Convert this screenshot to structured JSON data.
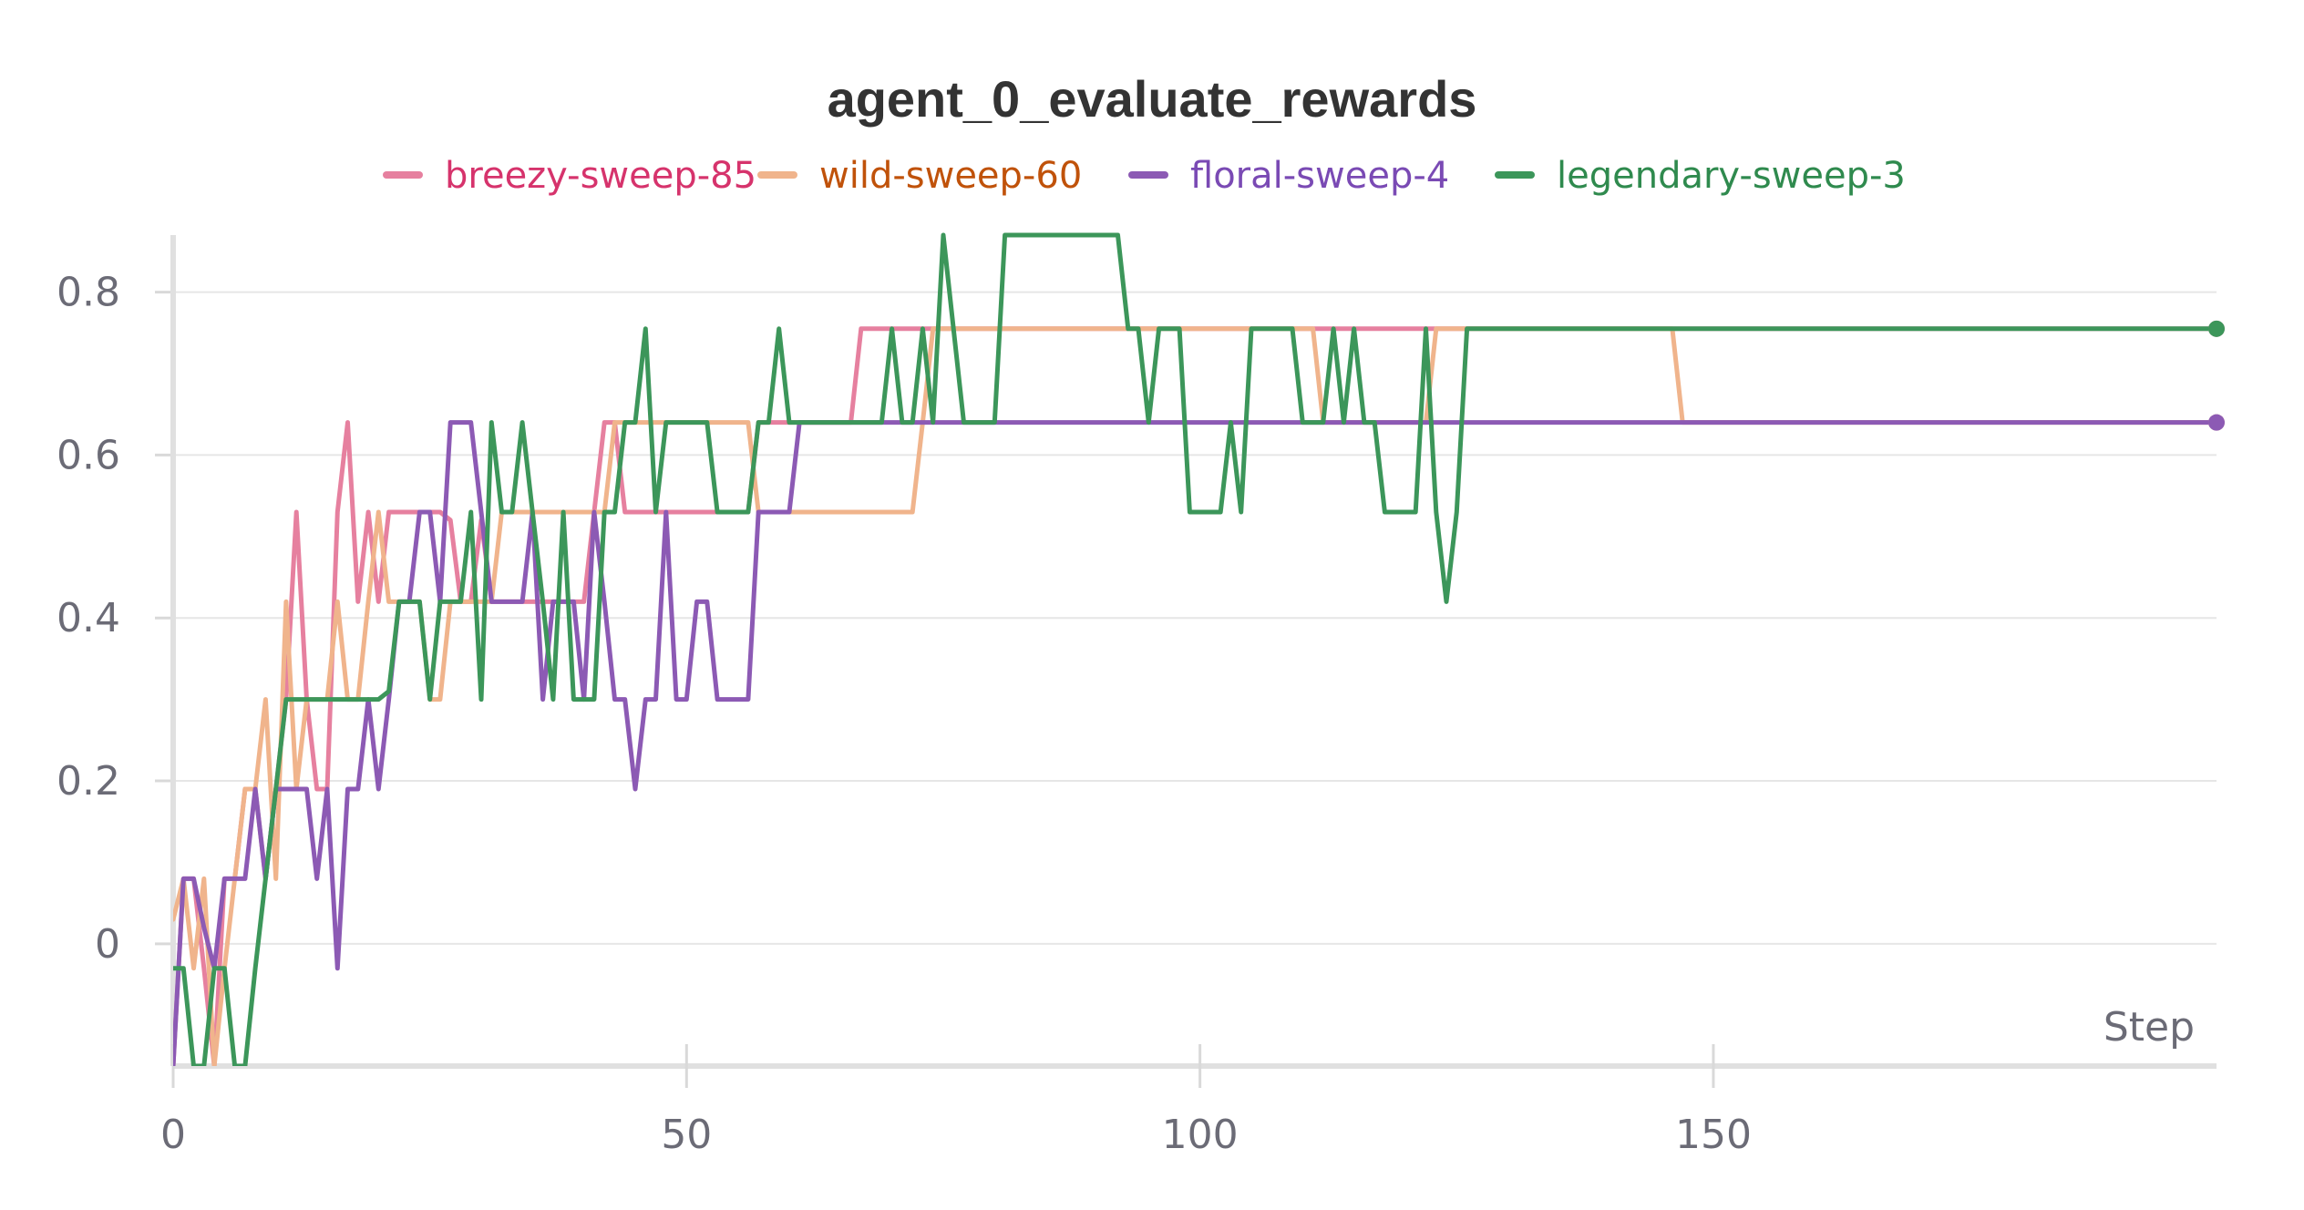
{
  "chart_data": {
    "type": "line",
    "title": "agent_0_evaluate_rewards",
    "xlabel": "Step",
    "ylabel": "",
    "xlim": [
      0,
      199
    ],
    "ylim": [
      -0.15,
      0.87
    ],
    "x_ticks": [
      0,
      50,
      100,
      150
    ],
    "y_ticks": [
      0,
      0.2,
      0.4,
      0.6,
      0.8
    ],
    "x_tick_labels": [
      "0",
      "50",
      "100",
      "150"
    ],
    "y_tick_labels": [
      "0",
      "0.2",
      "0.4",
      "0.6",
      "0.8"
    ],
    "grid": true,
    "legend_position": "top",
    "series": [
      {
        "name": "breezy-sweep-85",
        "color": "#e6809f",
        "label_color": "#d6336c",
        "points": [
          [
            0,
            -0.15
          ],
          [
            1,
            0.08
          ],
          [
            2,
            0.08
          ],
          [
            3,
            -0.03
          ],
          [
            4,
            -0.15
          ],
          [
            5,
            0.08
          ],
          [
            6,
            0.08
          ],
          [
            7,
            0.19
          ],
          [
            8,
            0.19
          ],
          [
            9,
            0.08
          ],
          [
            10,
            0.19
          ],
          [
            11,
            0.3
          ],
          [
            12,
            0.53
          ],
          [
            13,
            0.3
          ],
          [
            14,
            0.19
          ],
          [
            15,
            0.19
          ],
          [
            16,
            0.53
          ],
          [
            17,
            0.64
          ],
          [
            18,
            0.42
          ],
          [
            19,
            0.53
          ],
          [
            20,
            0.42
          ],
          [
            21,
            0.53
          ],
          [
            26,
            0.53
          ],
          [
            27,
            0.52
          ],
          [
            28,
            0.42
          ],
          [
            29,
            0.42
          ],
          [
            30,
            0.52
          ],
          [
            31,
            0.42
          ],
          [
            32,
            0.42
          ],
          [
            33,
            0.42
          ],
          [
            34,
            0.42
          ],
          [
            35,
            0.42
          ],
          [
            36,
            0.42
          ],
          [
            37,
            0.42
          ],
          [
            38,
            0.42
          ],
          [
            39,
            0.42
          ],
          [
            40,
            0.42
          ],
          [
            41,
            0.53
          ],
          [
            42,
            0.64
          ],
          [
            43,
            0.64
          ],
          [
            44,
            0.53
          ],
          [
            55,
            0.53
          ],
          [
            56,
            0.53
          ],
          [
            57,
            0.64
          ],
          [
            66,
            0.64
          ],
          [
            67,
            0.755
          ],
          [
            130,
            0.755
          ],
          [
            199,
            0.755
          ]
        ]
      },
      {
        "name": "wild-sweep-60",
        "color": "#f0b48c",
        "label_color": "#c0520a",
        "points": [
          [
            0,
            0.03
          ],
          [
            1,
            0.08
          ],
          [
            2,
            -0.03
          ],
          [
            3,
            0.08
          ],
          [
            4,
            -0.15
          ],
          [
            5,
            -0.03
          ],
          [
            6,
            0.08
          ],
          [
            7,
            0.19
          ],
          [
            8,
            0.19
          ],
          [
            9,
            0.3
          ],
          [
            10,
            0.08
          ],
          [
            11,
            0.42
          ],
          [
            12,
            0.19
          ],
          [
            13,
            0.3
          ],
          [
            14,
            0.3
          ],
          [
            15,
            0.3
          ],
          [
            16,
            0.42
          ],
          [
            17,
            0.3
          ],
          [
            18,
            0.3
          ],
          [
            19,
            0.42
          ],
          [
            20,
            0.53
          ],
          [
            21,
            0.42
          ],
          [
            22,
            0.42
          ],
          [
            24,
            0.42
          ],
          [
            25,
            0.3
          ],
          [
            26,
            0.3
          ],
          [
            27,
            0.42
          ],
          [
            28,
            0.42
          ],
          [
            29,
            0.42
          ],
          [
            30,
            0.42
          ],
          [
            31,
            0.42
          ],
          [
            32,
            0.53
          ],
          [
            33,
            0.53
          ],
          [
            42,
            0.53
          ],
          [
            43,
            0.64
          ],
          [
            56,
            0.64
          ],
          [
            57,
            0.53
          ],
          [
            72,
            0.53
          ],
          [
            73,
            0.64
          ],
          [
            74,
            0.755
          ],
          [
            111,
            0.755
          ],
          [
            112,
            0.64
          ],
          [
            122,
            0.64
          ],
          [
            123,
            0.755
          ],
          [
            146,
            0.755
          ],
          [
            147,
            0.64
          ],
          [
            199,
            0.64
          ]
        ]
      },
      {
        "name": "floral-sweep-4",
        "color": "#8c5ab4",
        "label_color": "#7a4ab4",
        "points": [
          [
            0,
            -0.15
          ],
          [
            1,
            0.08
          ],
          [
            2,
            0.08
          ],
          [
            3,
            0.02
          ],
          [
            4,
            -0.03
          ],
          [
            5,
            0.08
          ],
          [
            6,
            0.08
          ],
          [
            7,
            0.08
          ],
          [
            8,
            0.19
          ],
          [
            9,
            0.08
          ],
          [
            10,
            0.19
          ],
          [
            11,
            0.19
          ],
          [
            12,
            0.19
          ],
          [
            13,
            0.19
          ],
          [
            14,
            0.08
          ],
          [
            15,
            0.19
          ],
          [
            16,
            -0.03
          ],
          [
            17,
            0.19
          ],
          [
            18,
            0.19
          ],
          [
            19,
            0.3
          ],
          [
            20,
            0.19
          ],
          [
            21,
            0.3
          ],
          [
            22,
            0.42
          ],
          [
            23,
            0.42
          ],
          [
            24,
            0.53
          ],
          [
            25,
            0.53
          ],
          [
            26,
            0.42
          ],
          [
            27,
            0.64
          ],
          [
            28,
            0.64
          ],
          [
            29,
            0.64
          ],
          [
            30,
            0.53
          ],
          [
            31,
            0.42
          ],
          [
            32,
            0.42
          ],
          [
            33,
            0.42
          ],
          [
            34,
            0.42
          ],
          [
            35,
            0.53
          ],
          [
            36,
            0.3
          ],
          [
            37,
            0.42
          ],
          [
            38,
            0.42
          ],
          [
            39,
            0.42
          ],
          [
            40,
            0.3
          ],
          [
            41,
            0.53
          ],
          [
            42,
            0.42
          ],
          [
            43,
            0.3
          ],
          [
            44,
            0.3
          ],
          [
            45,
            0.19
          ],
          [
            46,
            0.3
          ],
          [
            47,
            0.3
          ],
          [
            48,
            0.53
          ],
          [
            49,
            0.3
          ],
          [
            50,
            0.3
          ],
          [
            51,
            0.42
          ],
          [
            52,
            0.42
          ],
          [
            53,
            0.3
          ],
          [
            56,
            0.3
          ],
          [
            57,
            0.53
          ],
          [
            60,
            0.53
          ],
          [
            61,
            0.64
          ],
          [
            199,
            0.64
          ]
        ]
      },
      {
        "name": "legendary-sweep-3",
        "color": "#3c965a",
        "label_color": "#2f8a4e",
        "points": [
          [
            0,
            -0.03
          ],
          [
            1,
            -0.03
          ],
          [
            2,
            -0.15
          ],
          [
            3,
            -0.15
          ],
          [
            4,
            -0.03
          ],
          [
            5,
            -0.03
          ],
          [
            6,
            -0.15
          ],
          [
            7,
            -0.15
          ],
          [
            8,
            -0.03
          ],
          [
            9,
            0.08
          ],
          [
            10,
            0.19
          ],
          [
            11,
            0.3
          ],
          [
            12,
            0.3
          ],
          [
            20,
            0.3
          ],
          [
            21,
            0.31
          ],
          [
            22,
            0.42
          ],
          [
            23,
            0.42
          ],
          [
            24,
            0.42
          ],
          [
            25,
            0.3
          ],
          [
            26,
            0.42
          ],
          [
            27,
            0.42
          ],
          [
            28,
            0.42
          ],
          [
            29,
            0.53
          ],
          [
            30,
            0.3
          ],
          [
            31,
            0.64
          ],
          [
            32,
            0.53
          ],
          [
            33,
            0.53
          ],
          [
            34,
            0.64
          ],
          [
            35,
            0.53
          ],
          [
            36,
            0.42
          ],
          [
            37,
            0.3
          ],
          [
            38,
            0.53
          ],
          [
            39,
            0.3
          ],
          [
            40,
            0.3
          ],
          [
            41,
            0.3
          ],
          [
            42,
            0.53
          ],
          [
            43,
            0.53
          ],
          [
            44,
            0.64
          ],
          [
            45,
            0.64
          ],
          [
            46,
            0.755
          ],
          [
            47,
            0.53
          ],
          [
            48,
            0.64
          ],
          [
            52,
            0.64
          ],
          [
            53,
            0.53
          ],
          [
            56,
            0.53
          ],
          [
            57,
            0.64
          ],
          [
            58,
            0.64
          ],
          [
            59,
            0.755
          ],
          [
            60,
            0.64
          ],
          [
            69,
            0.64
          ],
          [
            70,
            0.755
          ],
          [
            71,
            0.64
          ],
          [
            72,
            0.64
          ],
          [
            73,
            0.755
          ],
          [
            74,
            0.64
          ],
          [
            75,
            0.87
          ],
          [
            76,
            0.755
          ],
          [
            77,
            0.64
          ],
          [
            80,
            0.64
          ],
          [
            81,
            0.87
          ],
          [
            92,
            0.87
          ],
          [
            93,
            0.755
          ],
          [
            94,
            0.755
          ],
          [
            95,
            0.64
          ],
          [
            96,
            0.755
          ],
          [
            98,
            0.755
          ],
          [
            99,
            0.53
          ],
          [
            102,
            0.53
          ],
          [
            103,
            0.64
          ],
          [
            104,
            0.53
          ],
          [
            105,
            0.755
          ],
          [
            109,
            0.755
          ],
          [
            110,
            0.64
          ],
          [
            112,
            0.64
          ],
          [
            113,
            0.755
          ],
          [
            114,
            0.64
          ],
          [
            115,
            0.755
          ],
          [
            116,
            0.64
          ],
          [
            117,
            0.64
          ],
          [
            118,
            0.53
          ],
          [
            121,
            0.53
          ],
          [
            122,
            0.755
          ],
          [
            123,
            0.53
          ],
          [
            124,
            0.42
          ],
          [
            125,
            0.53
          ],
          [
            126,
            0.755
          ],
          [
            199,
            0.755
          ]
        ]
      }
    ]
  }
}
